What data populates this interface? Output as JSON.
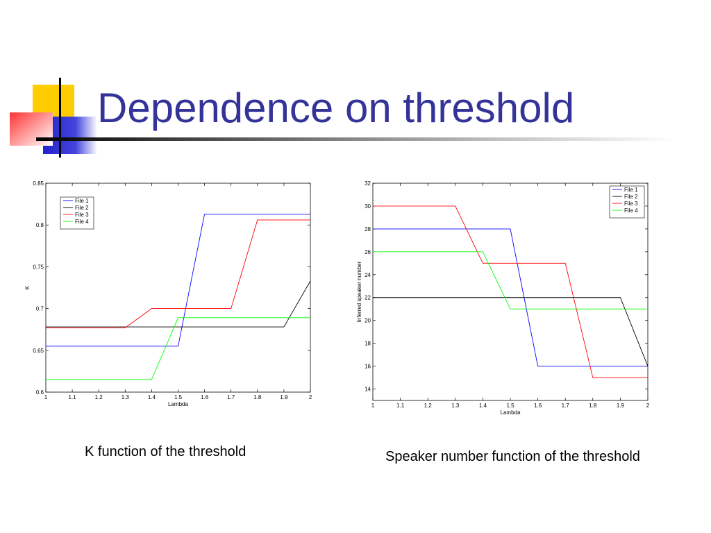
{
  "slide": {
    "title": "Dependence on threshold",
    "caption_left": "K function of the threshold",
    "caption_right": "Speaker number function of the threshold"
  },
  "chart_data": [
    {
      "type": "line",
      "xlabel": "Lambda",
      "ylabel": "K",
      "xlim": [
        1,
        2
      ],
      "ylim": [
        0.6,
        0.85
      ],
      "xticks": [
        1,
        1.1,
        1.2,
        1.3,
        1.4,
        1.5,
        1.6,
        1.7,
        1.8,
        1.9,
        2
      ],
      "yticks": [
        0.6,
        0.65,
        0.7,
        0.75,
        0.8,
        0.85
      ],
      "xtick_labels": [
        "1",
        "1.1",
        "1.2",
        "1.3",
        "1.4",
        "1.5",
        "1.6",
        "1.7",
        "1.8",
        "1.9",
        "2"
      ],
      "ytick_labels": [
        "0.6",
        "0.65",
        "0.7",
        "0.75",
        "0.8",
        "0.85"
      ],
      "grid": false,
      "legend_position": "top-left",
      "series": [
        {
          "name": "File 1",
          "color": "#0000ff",
          "x": [
            1,
            1.1,
            1.2,
            1.3,
            1.4,
            1.5,
            1.6,
            1.7,
            1.8,
            1.9,
            2
          ],
          "y": [
            0.655,
            0.655,
            0.655,
            0.655,
            0.655,
            0.655,
            0.813,
            0.813,
            0.813,
            0.813,
            0.813
          ]
        },
        {
          "name": "File 2",
          "color": "#000000",
          "x": [
            1,
            1.1,
            1.2,
            1.3,
            1.4,
            1.5,
            1.6,
            1.7,
            1.8,
            1.9,
            2
          ],
          "y": [
            0.678,
            0.678,
            0.678,
            0.678,
            0.678,
            0.678,
            0.678,
            0.678,
            0.678,
            0.678,
            0.733
          ]
        },
        {
          "name": "File 3",
          "color": "#ff0000",
          "x": [
            1,
            1.1,
            1.2,
            1.3,
            1.4,
            1.5,
            1.6,
            1.7,
            1.8,
            1.9,
            2
          ],
          "y": [
            0.677,
            0.677,
            0.677,
            0.677,
            0.7,
            0.7,
            0.7,
            0.7,
            0.806,
            0.806,
            0.806
          ]
        },
        {
          "name": "File 4",
          "color": "#00ff00",
          "x": [
            1,
            1.1,
            1.2,
            1.3,
            1.4,
            1.5,
            1.6,
            1.7,
            1.8,
            1.9,
            2
          ],
          "y": [
            0.615,
            0.615,
            0.615,
            0.615,
            0.615,
            0.689,
            0.689,
            0.689,
            0.689,
            0.689,
            0.689
          ]
        }
      ]
    },
    {
      "type": "line",
      "xlabel": "Lambda",
      "ylabel": "Inferred speaker number",
      "xlim": [
        1,
        2
      ],
      "ylim": [
        13,
        32
      ],
      "xticks": [
        1,
        1.1,
        1.2,
        1.3,
        1.4,
        1.5,
        1.6,
        1.7,
        1.8,
        1.9,
        2
      ],
      "yticks": [
        14,
        16,
        18,
        20,
        22,
        24,
        26,
        28,
        30,
        32
      ],
      "xtick_labels": [
        "1",
        "1.1",
        "1.2",
        "1.3",
        "1.4",
        "1.5",
        "1.6",
        "1.7",
        "1.8",
        "1.9",
        "2"
      ],
      "ytick_labels": [
        "14",
        "16",
        "18",
        "20",
        "22",
        "24",
        "26",
        "28",
        "30",
        "32"
      ],
      "grid": false,
      "legend_position": "top-right",
      "series": [
        {
          "name": "File 1",
          "color": "#0000ff",
          "x": [
            1,
            1.1,
            1.2,
            1.3,
            1.4,
            1.5,
            1.6,
            1.7,
            1.8,
            1.9,
            2
          ],
          "y": [
            28,
            28,
            28,
            28,
            28,
            28,
            16,
            16,
            16,
            16,
            16
          ]
        },
        {
          "name": "File 2",
          "color": "#000000",
          "x": [
            1,
            1.1,
            1.2,
            1.3,
            1.4,
            1.5,
            1.6,
            1.7,
            1.8,
            1.9,
            2
          ],
          "y": [
            22,
            22,
            22,
            22,
            22,
            22,
            22,
            22,
            22,
            22,
            16
          ]
        },
        {
          "name": "File 3",
          "color": "#ff0000",
          "x": [
            1,
            1.1,
            1.2,
            1.3,
            1.4,
            1.5,
            1.6,
            1.7,
            1.8,
            1.9,
            2
          ],
          "y": [
            30,
            30,
            30,
            30,
            25,
            25,
            25,
            25,
            15,
            15,
            15
          ]
        },
        {
          "name": "File 4",
          "color": "#00ff00",
          "x": [
            1,
            1.1,
            1.2,
            1.3,
            1.4,
            1.5,
            1.6,
            1.7,
            1.8,
            1.9,
            2
          ],
          "y": [
            26,
            26,
            26,
            26,
            26,
            21,
            21,
            21,
            21,
            21,
            21
          ]
        }
      ]
    }
  ]
}
